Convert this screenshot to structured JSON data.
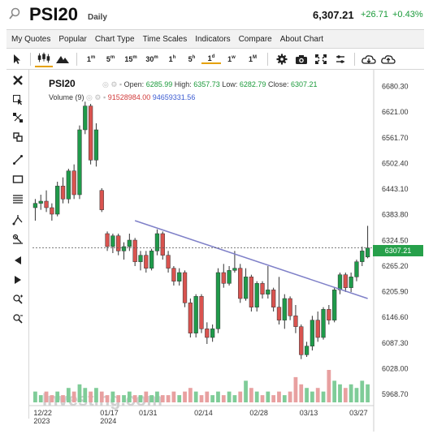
{
  "header": {
    "ticker": "PSI20",
    "period": "Daily",
    "price": "6,307.21",
    "change": "+26.71",
    "change_pct": "+0.43%"
  },
  "menu": [
    "My Quotes",
    "Popular",
    "Chart Type",
    "Time Scales",
    "Indicators",
    "Compare",
    "About Chart"
  ],
  "timeframes": [
    "1m",
    "5m",
    "15m",
    "30m",
    "1h",
    "5h",
    "1d",
    "1w",
    "1M"
  ],
  "info": {
    "symbol": "PSI20",
    "open_label": "Open:",
    "open": "6285.99",
    "high_label": "High:",
    "high": "6357.73",
    "low_label": "Low:",
    "low": "6282.79",
    "close_label": "Close:",
    "close": "6307.21",
    "volume_label": "Volume (9)",
    "volume1": "91528984.00",
    "volume2": "94659331.56"
  },
  "price_tag": "6307.21",
  "watermark": "Investing.com",
  "colors": {
    "up": "#1f9a4a",
    "down": "#d9534f",
    "trendline": "#7f80c8",
    "accent": "#e6a100"
  },
  "chart_data": {
    "type": "candlestick",
    "y_ticks": [
      "6680.30",
      "6621.00",
      "6561.70",
      "6502.40",
      "6443.10",
      "6383.80",
      "6324.50",
      "6265.20",
      "6205.90",
      "6146.60",
      "6087.30",
      "6028.00",
      "5968.70"
    ],
    "x_ticks": [
      {
        "label": "12/22",
        "sub": "2023"
      },
      {
        "label": "01/17",
        "sub": "2024"
      },
      {
        "label": "01/31",
        "sub": ""
      },
      {
        "label": "02/14",
        "sub": ""
      },
      {
        "label": "02/28",
        "sub": ""
      },
      {
        "label": "03/13",
        "sub": ""
      },
      {
        "label": "03/27",
        "sub": ""
      }
    ],
    "ylim": [
      5950,
      6700
    ],
    "candles": [
      {
        "o": 6400,
        "h": 6420,
        "l": 6370,
        "c": 6410
      },
      {
        "o": 6410,
        "h": 6430,
        "l": 6395,
        "c": 6415
      },
      {
        "o": 6415,
        "h": 6440,
        "l": 6390,
        "c": 6400
      },
      {
        "o": 6400,
        "h": 6410,
        "l": 6370,
        "c": 6385
      },
      {
        "o": 6385,
        "h": 6460,
        "l": 6380,
        "c": 6450
      },
      {
        "o": 6450,
        "h": 6470,
        "l": 6410,
        "c": 6420
      },
      {
        "o": 6420,
        "h": 6490,
        "l": 6410,
        "c": 6485
      },
      {
        "o": 6485,
        "h": 6500,
        "l": 6420,
        "c": 6430
      },
      {
        "o": 6430,
        "h": 6590,
        "l": 6420,
        "c": 6580
      },
      {
        "o": 6580,
        "h": 6645,
        "l": 6570,
        "c": 6635
      },
      {
        "o": 6635,
        "h": 6640,
        "l": 6500,
        "c": 6510
      },
      {
        "o": 6510,
        "h": 6595,
        "l": 6495,
        "c": 6580
      },
      {
        "o": 6440,
        "h": 6445,
        "l": 6390,
        "c": 6395
      },
      {
        "o": 6340,
        "h": 6345,
        "l": 6300,
        "c": 6310
      },
      {
        "o": 6310,
        "h": 6340,
        "l": 6295,
        "c": 6335
      },
      {
        "o": 6335,
        "h": 6340,
        "l": 6290,
        "c": 6300
      },
      {
        "o": 6300,
        "h": 6320,
        "l": 6280,
        "c": 6310
      },
      {
        "o": 6310,
        "h": 6340,
        "l": 6300,
        "c": 6325
      },
      {
        "o": 6325,
        "h": 6330,
        "l": 6265,
        "c": 6275
      },
      {
        "o": 6275,
        "h": 6300,
        "l": 6255,
        "c": 6290
      },
      {
        "o": 6290,
        "h": 6300,
        "l": 6250,
        "c": 6260
      },
      {
        "o": 6260,
        "h": 6305,
        "l": 6255,
        "c": 6300
      },
      {
        "o": 6300,
        "h": 6350,
        "l": 6290,
        "c": 6340
      },
      {
        "o": 6340,
        "h": 6345,
        "l": 6280,
        "c": 6290
      },
      {
        "o": 6290,
        "h": 6300,
        "l": 6250,
        "c": 6260
      },
      {
        "o": 6260,
        "h": 6265,
        "l": 6220,
        "c": 6230
      },
      {
        "o": 6230,
        "h": 6260,
        "l": 6220,
        "c": 6250
      },
      {
        "o": 6250,
        "h": 6255,
        "l": 6170,
        "c": 6180
      },
      {
        "o": 6180,
        "h": 6190,
        "l": 6100,
        "c": 6110
      },
      {
        "o": 6110,
        "h": 6200,
        "l": 6100,
        "c": 6195
      },
      {
        "o": 6195,
        "h": 6200,
        "l": 6110,
        "c": 6120
      },
      {
        "o": 6120,
        "h": 6135,
        "l": 6085,
        "c": 6100
      },
      {
        "o": 6100,
        "h": 6130,
        "l": 6090,
        "c": 6120
      },
      {
        "o": 6120,
        "h": 6260,
        "l": 6110,
        "c": 6250
      },
      {
        "o": 6250,
        "h": 6270,
        "l": 6215,
        "c": 6225
      },
      {
        "o": 6225,
        "h": 6265,
        "l": 6220,
        "c": 6255
      },
      {
        "o": 6255,
        "h": 6300,
        "l": 6250,
        "c": 6260
      },
      {
        "o": 6260,
        "h": 6270,
        "l": 6180,
        "c": 6190
      },
      {
        "o": 6190,
        "h": 6260,
        "l": 6185,
        "c": 6240
      },
      {
        "o": 6240,
        "h": 6245,
        "l": 6160,
        "c": 6170
      },
      {
        "o": 6170,
        "h": 6230,
        "l": 6160,
        "c": 6225
      },
      {
        "o": 6225,
        "h": 6230,
        "l": 6190,
        "c": 6200
      },
      {
        "o": 6200,
        "h": 6265,
        "l": 6190,
        "c": 6210
      },
      {
        "o": 6210,
        "h": 6215,
        "l": 6160,
        "c": 6170
      },
      {
        "o": 6170,
        "h": 6240,
        "l": 6130,
        "c": 6140
      },
      {
        "o": 6140,
        "h": 6200,
        "l": 6120,
        "c": 6190
      },
      {
        "o": 6190,
        "h": 6195,
        "l": 6140,
        "c": 6150
      },
      {
        "o": 6150,
        "h": 6175,
        "l": 6110,
        "c": 6125
      },
      {
        "o": 6125,
        "h": 6130,
        "l": 6050,
        "c": 6060
      },
      {
        "o": 6060,
        "h": 6090,
        "l": 6055,
        "c": 6080
      },
      {
        "o": 6080,
        "h": 6150,
        "l": 6070,
        "c": 6140
      },
      {
        "o": 6140,
        "h": 6160,
        "l": 6090,
        "c": 6100
      },
      {
        "o": 6100,
        "h": 6170,
        "l": 6095,
        "c": 6165
      },
      {
        "o": 6165,
        "h": 6175,
        "l": 6130,
        "c": 6140
      },
      {
        "o": 6140,
        "h": 6215,
        "l": 6135,
        "c": 6210
      },
      {
        "o": 6210,
        "h": 6250,
        "l": 6200,
        "c": 6245
      },
      {
        "o": 6245,
        "h": 6250,
        "l": 6205,
        "c": 6215
      },
      {
        "o": 6215,
        "h": 6250,
        "l": 6205,
        "c": 6240
      },
      {
        "o": 6240,
        "h": 6280,
        "l": 6230,
        "c": 6275
      },
      {
        "o": 6275,
        "h": 6310,
        "l": 6265,
        "c": 6300
      },
      {
        "o": 6286,
        "h": 6358,
        "l": 6283,
        "c": 6307
      }
    ],
    "volume": [
      3,
      2,
      3,
      2,
      3,
      2,
      4,
      3,
      5,
      4,
      3,
      4,
      3,
      2,
      3,
      2,
      2,
      3,
      2,
      2,
      3,
      2,
      3,
      2,
      2,
      3,
      2,
      3,
      4,
      3,
      2,
      3,
      2,
      3,
      2,
      3,
      2,
      3,
      6,
      4,
      3,
      2,
      3,
      2,
      3,
      2,
      3,
      7,
      5,
      4,
      3,
      4,
      3,
      9,
      6,
      5,
      4,
      5,
      4,
      6,
      5
    ],
    "trendline": [
      {
        "i": 18,
        "v": 6370
      },
      {
        "i": 60,
        "v": 6190
      }
    ]
  }
}
